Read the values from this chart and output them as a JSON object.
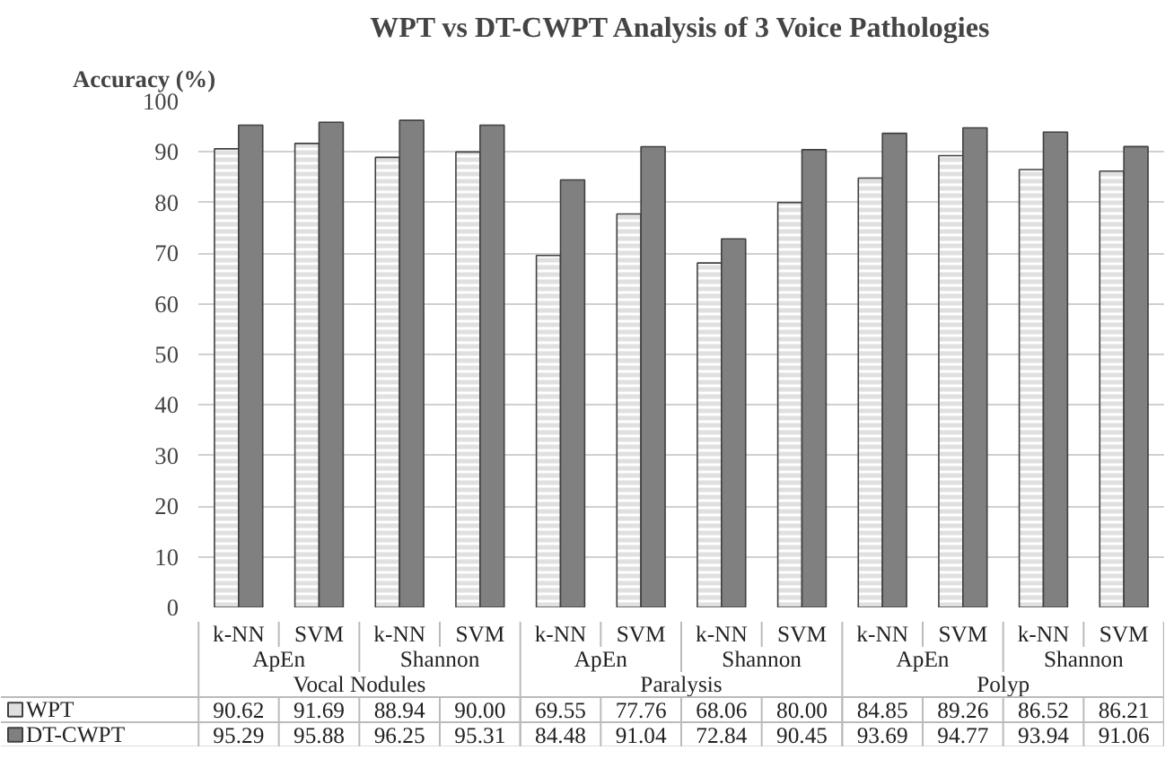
{
  "chart_data": {
    "type": "bar",
    "title": "WPT vs DT-CWPT Analysis of 3 Voice Pathologies",
    "ylabel": "Accuracy (%)",
    "categories": [
      "k-NN",
      "SVM",
      "k-NN",
      "SVM",
      "k-NN",
      "SVM",
      "k-NN",
      "SVM",
      "k-NN",
      "SVM",
      "k-NN",
      "SVM"
    ],
    "annotations": [
      "ApEn",
      "Shannon",
      "ApEn",
      "Shannon",
      "ApEn",
      "Shannon",
      "Vocal Nodules",
      "Paralysis",
      "Polyp"
    ],
    "series": [
      {
        "name": "WPT",
        "color": "#e0e0e0",
        "values": [
          90.62,
          91.69,
          88.94,
          90.0,
          69.55,
          77.76,
          68.06,
          80.0,
          84.85,
          89.26,
          86.52,
          86.21
        ],
        "value_labels": [
          "90.62",
          "91.69",
          "88.94",
          "90.00",
          "69.55",
          "77.76",
          "68.06",
          "80.00",
          "84.85",
          "89.26",
          "86.52",
          "86.21"
        ]
      },
      {
        "name": "DT-CWPT",
        "color": "#808080",
        "values": [
          95.29,
          95.88,
          96.25,
          95.31,
          84.48,
          91.04,
          72.84,
          90.45,
          93.69,
          94.77,
          93.94,
          91.06
        ],
        "value_labels": [
          "95.29",
          "95.88",
          "96.25",
          "95.31",
          "84.48",
          "91.04",
          "72.84",
          "90.45",
          "93.69",
          "94.77",
          "93.94",
          "91.06"
        ]
      }
    ],
    "ylim": [
      0,
      100
    ],
    "yticks": [
      0,
      10,
      20,
      30,
      40,
      50,
      60,
      70,
      80,
      90,
      100
    ],
    "grid": "y",
    "legend": "bottom"
  }
}
